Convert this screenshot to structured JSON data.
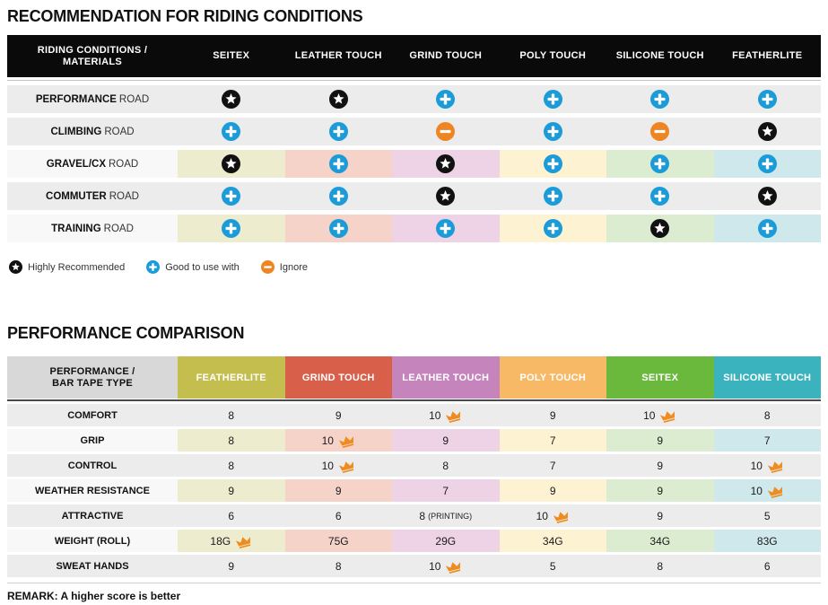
{
  "colors": {
    "header_bar": "#0a0a0a",
    "row_gray": "#ececec",
    "label_light": "#f8f8f8",
    "icon_star": "#111111",
    "icon_plus": "#1b9cd8",
    "icon_minus": "#ee8522",
    "crown": "#ef8c1f",
    "corner_gray": "#d8d8d8",
    "column_tints": [
      "#edecce",
      "#f6d3c9",
      "#eed2e6",
      "#fdf3d2",
      "#dcecd1",
      "#cfe8ec"
    ],
    "column_brand": [
      "#c4be4e",
      "#d8604b",
      "#c684bc",
      "#f7b966",
      "#6ab83c",
      "#3bb3bf"
    ]
  },
  "chart_data": [
    {
      "type": "table",
      "title": "RECOMMENDATION FOR RIDING CONDITIONS",
      "corner_header": [
        "RIDING CONDITIONS /",
        "MATERIALS"
      ],
      "columns": [
        "SEITEX",
        "LEATHER TOUCH",
        "GRIND TOUCH",
        "POLY TOUCH",
        "SILICONE TOUCH",
        "FEATHERLITE"
      ],
      "rows": [
        {
          "label_bold": "PERFORMANCE",
          "label_rest": "ROAD",
          "tinted": false,
          "cells": [
            "star",
            "star",
            "plus",
            "plus",
            "plus",
            "plus"
          ]
        },
        {
          "label_bold": "CLIMBING",
          "label_rest": "ROAD",
          "tinted": false,
          "cells": [
            "plus",
            "plus",
            "minus",
            "plus",
            "minus",
            "star"
          ]
        },
        {
          "label_bold": "GRAVEL/CX",
          "label_rest": "ROAD",
          "tinted": true,
          "cells": [
            "star",
            "plus",
            "star",
            "plus",
            "plus",
            "plus"
          ]
        },
        {
          "label_bold": "COMMUTER",
          "label_rest": "ROAD",
          "tinted": false,
          "cells": [
            "plus",
            "plus",
            "star",
            "plus",
            "plus",
            "star"
          ]
        },
        {
          "label_bold": "TRAINING",
          "label_rest": "ROAD",
          "tinted": true,
          "cells": [
            "plus",
            "plus",
            "plus",
            "plus",
            "star",
            "plus"
          ]
        }
      ],
      "legend": [
        {
          "icon": "star",
          "label": "Highly Recommended"
        },
        {
          "icon": "plus",
          "label": "Good to use with"
        },
        {
          "icon": "minus",
          "label": "Ignore"
        }
      ]
    },
    {
      "type": "table",
      "title": "PERFORMANCE COMPARISON",
      "corner_header": [
        "PERFORMANCE /",
        "BAR TAPE TYPE"
      ],
      "columns": [
        {
          "label": "FEATHERLITE"
        },
        {
          "label": "GRIND TOUCH"
        },
        {
          "label": "LEATHER TOUCH"
        },
        {
          "label": "POLY TOUCH"
        },
        {
          "label": "SEITEX"
        },
        {
          "label": "SILICONE TOUCH"
        }
      ],
      "rows": [
        {
          "label": "COMFORT",
          "tinted": false,
          "cells": [
            {
              "value": "8"
            },
            {
              "value": "9"
            },
            {
              "value": "10",
              "best": true
            },
            {
              "value": "9"
            },
            {
              "value": "10",
              "best": true
            },
            {
              "value": "8"
            }
          ]
        },
        {
          "label": "GRIP",
          "tinted": true,
          "cells": [
            {
              "value": "8"
            },
            {
              "value": "10",
              "best": true
            },
            {
              "value": "9"
            },
            {
              "value": "7"
            },
            {
              "value": "9"
            },
            {
              "value": "7"
            }
          ]
        },
        {
          "label": "CONTROL",
          "tinted": false,
          "cells": [
            {
              "value": "8"
            },
            {
              "value": "10",
              "best": true
            },
            {
              "value": "8"
            },
            {
              "value": "7"
            },
            {
              "value": "9"
            },
            {
              "value": "10",
              "best": true
            }
          ]
        },
        {
          "label": "WEATHER RESISTANCE",
          "tinted": true,
          "cells": [
            {
              "value": "9"
            },
            {
              "value": "9"
            },
            {
              "value": "7"
            },
            {
              "value": "9"
            },
            {
              "value": "9"
            },
            {
              "value": "10",
              "best": true
            }
          ]
        },
        {
          "label": "ATTRACTIVE",
          "tinted": false,
          "cells": [
            {
              "value": "6"
            },
            {
              "value": "6"
            },
            {
              "value": "8",
              "note": "(PRINTING)"
            },
            {
              "value": "10",
              "best": true
            },
            {
              "value": "9"
            },
            {
              "value": "5"
            }
          ]
        },
        {
          "label": "WEIGHT (ROLL)",
          "tinted": true,
          "cells": [
            {
              "value": "18G",
              "best": true
            },
            {
              "value": "75G"
            },
            {
              "value": "29G"
            },
            {
              "value": "34G"
            },
            {
              "value": "34G"
            },
            {
              "value": "83G"
            }
          ]
        },
        {
          "label": "SWEAT HANDS",
          "tinted": false,
          "cells": [
            {
              "value": "9"
            },
            {
              "value": "8"
            },
            {
              "value": "10",
              "best": true
            },
            {
              "value": "5"
            },
            {
              "value": "8"
            },
            {
              "value": "6"
            }
          ]
        }
      ],
      "remark": "REMARK: A higher score is better"
    }
  ]
}
